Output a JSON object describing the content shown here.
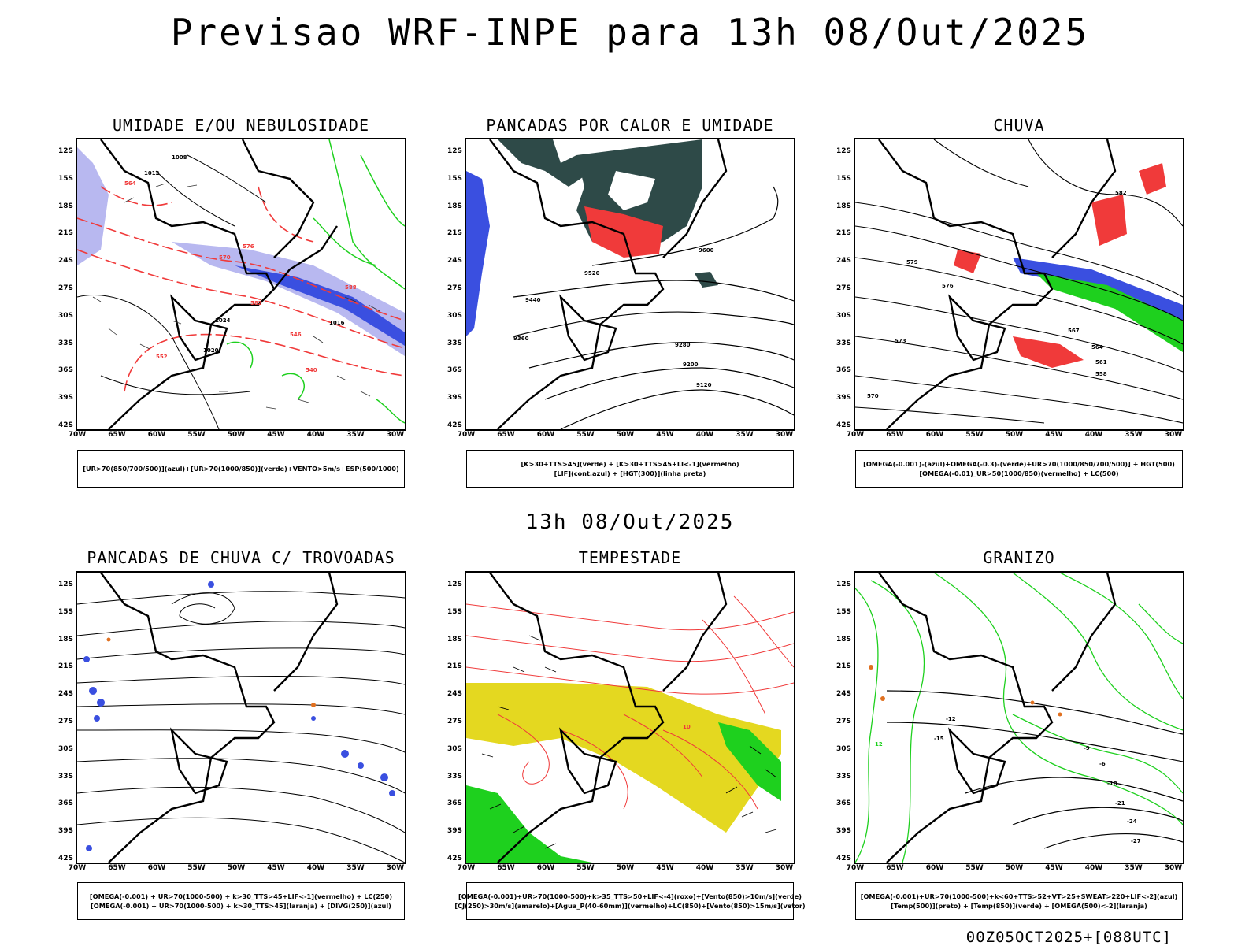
{
  "header": {
    "title": "Previsao WRF-INPE  para 13h 08/Out/2025"
  },
  "middle_title": "13h 08/Out/2025",
  "footer": "00Z05OCT2025+[088UTC]",
  "axes": {
    "lat_labels": [
      "12S",
      "15S",
      "18S",
      "21S",
      "24S",
      "27S",
      "30S",
      "33S",
      "36S",
      "39S",
      "42S"
    ],
    "lon_labels": [
      "70W",
      "65W",
      "60W",
      "55W",
      "50W",
      "45W",
      "40W",
      "35W",
      "30W"
    ]
  },
  "panels": [
    {
      "title": "UMIDADE E/OU NEBULOSIDADE",
      "legend": [
        "[UR>70(850/700/500)](azul)+[UR>70(1000/850)](verde)+VENTO>5m/s+ESP(500/1000)"
      ],
      "contour_labels": [
        "1008",
        "1012",
        "1016",
        "1020",
        "1024",
        "570",
        "576",
        "582",
        "552",
        "546",
        "540",
        "588",
        "564"
      ]
    },
    {
      "title": "PANCADAS POR CALOR E UMIDADE",
      "legend": [
        "[K>30+TTS>45](verde) + [K>30+TTS>45+LI<-1](vermelho)",
        "[LIF](cont.azul) + [HGT(300)](linha preta)"
      ],
      "contour_labels": [
        "9600",
        "9520",
        "9440",
        "9360",
        "9280",
        "9200",
        "9120"
      ]
    },
    {
      "title": "CHUVA",
      "legend": [
        "[OMEGA(-0.001)-(azul)+OMEGA(-0.3)-(verde)+UR>70(1000/850/700/500)] + HGT(500)",
        "[OMEGA(-0.01)_UR>50(1000/850)(vermelho) + LC(500)"
      ],
      "contour_labels": [
        "582",
        "579",
        "576",
        "573",
        "570",
        "567",
        "564",
        "561",
        "558"
      ]
    },
    {
      "title": "PANCADAS DE CHUVA C/ TROVOADAS",
      "legend": [
        "[OMEGA(-0.001) + UR>70(1000-500) + k>30_TTS>45+LIF<-1](vermelho) + LC(250)",
        "[OMEGA(-0.001) + UR>70(1000-500) + k>30_TTS>45](laranja) + [DIVG(250)](azul)"
      ],
      "contour_labels": []
    },
    {
      "title": "TEMPESTADE",
      "legend": [
        "[OMEGA(-0.001)+UR>70(1000-500)+k>35_TTS>50+LIF<-4](roxo)+[Vento(850)>10m/s](verde)",
        "[CJ(250)>30m/s](amarelo)+[Agua_P(40-60mm)](vermelho)+LC(850)+[Vento(850)>15m/s](vetor)"
      ],
      "contour_labels": [
        "10"
      ]
    },
    {
      "title": "GRANIZO",
      "legend": [
        "[OMEGA(-0.001)+UR>70(1000-500)+k<60+TTS>52+VT>25+SWEAT>220+LIF<-2](azul)",
        "[Temp(500)](preto) + [Temp(850)](verde) + [OMEGA(500)<-2](laranja)"
      ],
      "contour_labels": [
        "-12",
        "-15",
        "-18",
        "-21",
        "-24",
        "-27",
        "-9",
        "-6",
        "12"
      ]
    }
  ],
  "colors": {
    "blue": "#3a4fe0",
    "lightblue": "#b8b8f0",
    "green": "#1ed01e",
    "red": "#f03a3a",
    "darkteal": "#2e4a48",
    "yellow": "#e4d820",
    "orange": "#e07020"
  }
}
